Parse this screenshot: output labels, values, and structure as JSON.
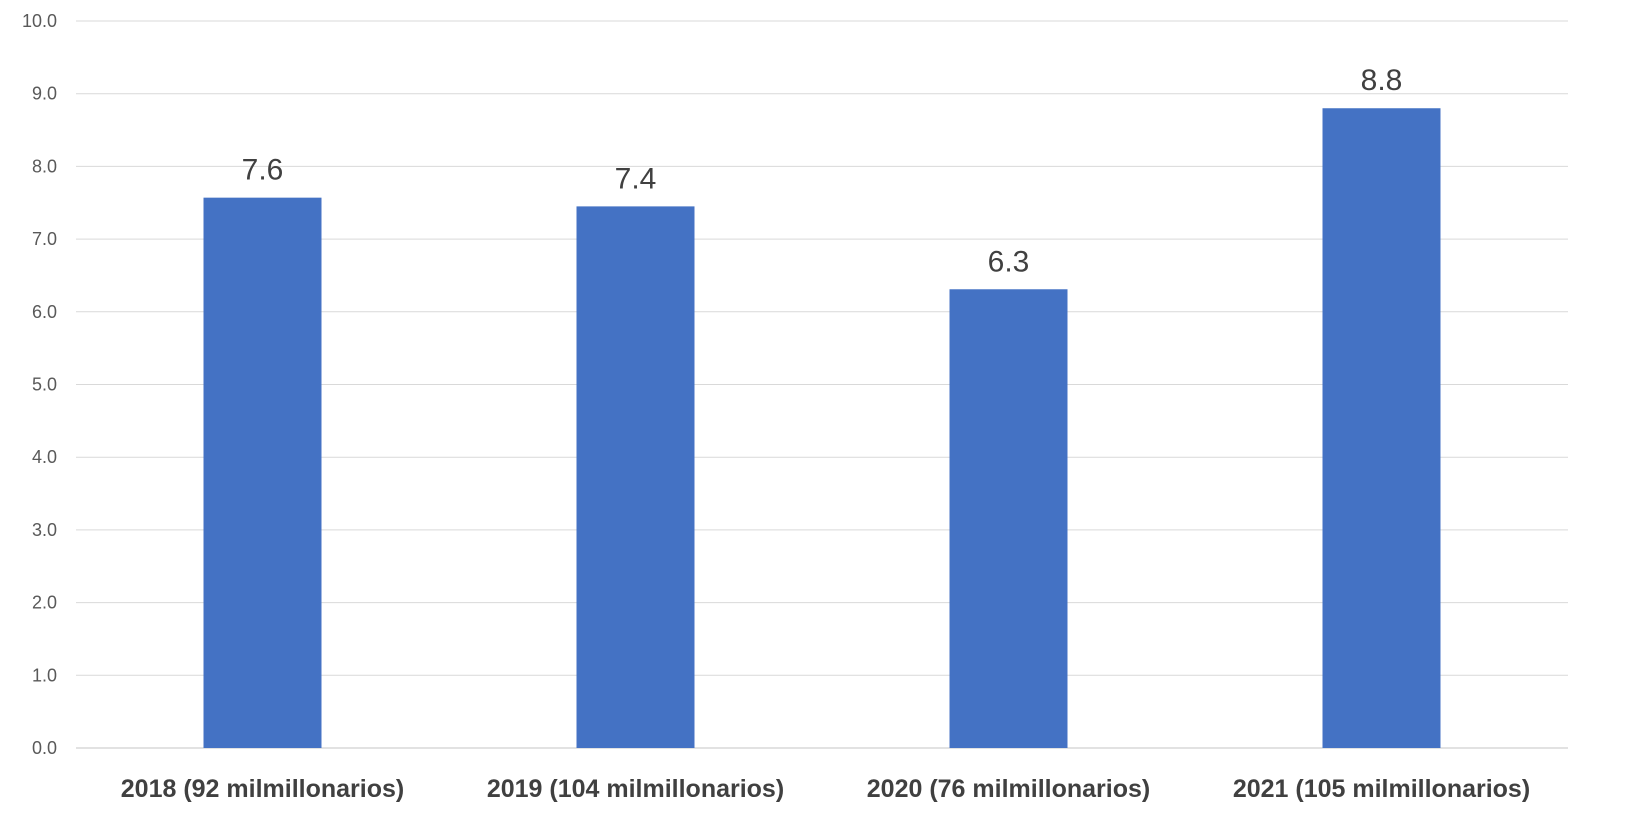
{
  "chart_data": {
    "type": "bar",
    "categories": [
      "2018 (92 milmillonarios)",
      "2019 (104 milmillonarios)",
      "2020 (76 milmillonarios)",
      "2021 (105 milmillonarios)"
    ],
    "values": [
      7.57,
      7.45,
      6.31,
      8.8
    ],
    "data_labels": [
      "7.6",
      "7.4",
      "6.3",
      "8.8"
    ],
    "y_ticks": [
      "0.0",
      "1.0",
      "2.0",
      "3.0",
      "4.0",
      "5.0",
      "6.0",
      "7.0",
      "8.0",
      "9.0",
      "10.0"
    ],
    "title": "",
    "xlabel": "",
    "ylabel": "",
    "ylim": [
      0,
      10
    ],
    "grid": true,
    "legend": "none",
    "bar_color": "#4472C4",
    "grid_color": "#D9D9D9"
  }
}
